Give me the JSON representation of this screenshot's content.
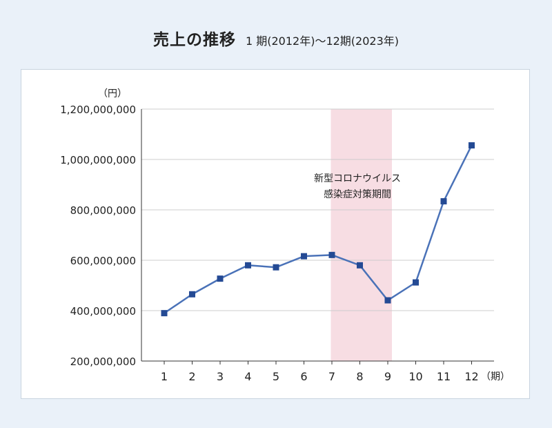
{
  "title": "売上の推移",
  "subtitle": "1 期(2012年)～12期(2023年)",
  "chart_data": {
    "type": "line",
    "y_unit": "（円）",
    "x_unit": "（期）",
    "categories": [
      "1",
      "2",
      "3",
      "4",
      "5",
      "6",
      "7",
      "8",
      "9",
      "10",
      "11",
      "12"
    ],
    "y_ticks": [
      "1,200,000,000",
      "1,000,000,000",
      "800,000,000",
      "600,000,000",
      "400,000,000",
      "200,000,000"
    ],
    "ylim": [
      200000000,
      1200000000
    ],
    "y_tick_values": [
      1200000000,
      1000000000,
      800000000,
      600000000,
      400000000,
      200000000
    ],
    "grid": true,
    "series": [
      {
        "values": [
          390000000,
          465000000,
          527000000,
          580000000,
          572000000,
          616000000,
          621000000,
          580000000,
          441000000,
          512000000,
          834000000,
          1056000000
        ],
        "color": "#4a72b8",
        "marker_color": "#244a94"
      }
    ],
    "highlight": {
      "from": 7,
      "to": 9,
      "color": "#f7dde3",
      "label_lines": [
        "新型コロナウイルス",
        "感染症対策期間"
      ]
    }
  }
}
